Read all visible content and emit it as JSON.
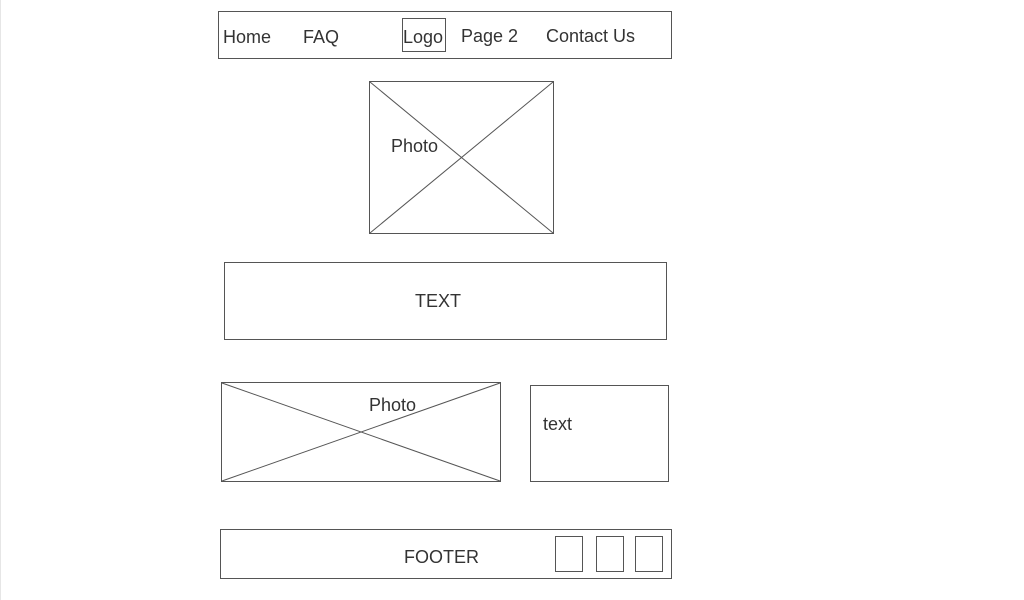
{
  "header": {
    "nav": {
      "home": "Home",
      "faq": "FAQ",
      "logo": "Logo",
      "page2": "Page 2",
      "contact": "Contact Us"
    }
  },
  "photo_top": {
    "label": "Photo"
  },
  "text_block": {
    "label": "TEXT"
  },
  "photo_bottom": {
    "label": "Photo"
  },
  "side_text": {
    "label": "text"
  },
  "footer": {
    "label": "FOOTER"
  },
  "colors": {
    "stroke": "#555555",
    "text": "#333333",
    "background": "#ffffff"
  }
}
